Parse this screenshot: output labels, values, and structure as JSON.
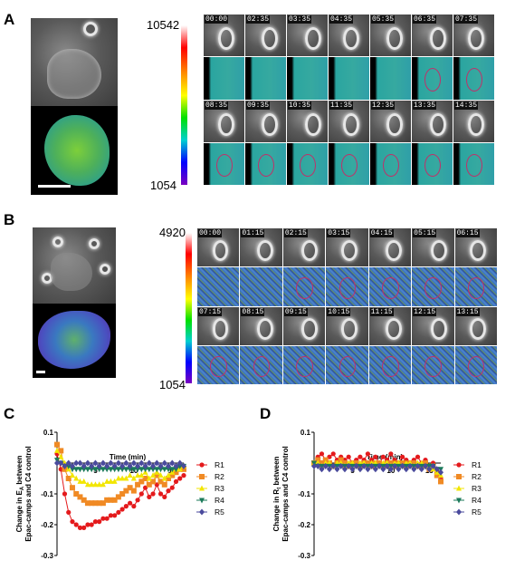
{
  "panels": {
    "A": {
      "label": "A",
      "cb_max": "10542",
      "cb_min": "1054",
      "times_row1": [
        "00:00",
        "02:35",
        "03:35",
        "04:35",
        "05:35",
        "06:35",
        "07:35"
      ],
      "times_row2": [
        "08:35",
        "09:35",
        "10:35",
        "11:35",
        "12:35",
        "13:35",
        "14:35"
      ]
    },
    "B": {
      "label": "B",
      "cb_max": "4920",
      "cb_min": "1054",
      "times_row1": [
        "00:00",
        "01:15",
        "02:15",
        "03:15",
        "04:15",
        "05:15",
        "06:15"
      ],
      "times_row2": [
        "07:15",
        "08:15",
        "09:15",
        "10:15",
        "11:15",
        "12:15",
        "13:15"
      ]
    },
    "C": {
      "label": "C"
    },
    "D": {
      "label": "D"
    }
  },
  "chart_data": [
    {
      "type": "line",
      "panel": "C",
      "title": "",
      "xlabel": "Time (min)",
      "ylabel_line1": "Change in E",
      "ylabel_sub": "A",
      "ylabel_rest": " between",
      "ylabel_line2": "Epac-camps and C4 control",
      "xlim": [
        0,
        16.5
      ],
      "ylim": [
        -0.3,
        0.1
      ],
      "xticks": [
        5,
        10,
        15
      ],
      "yticks": [
        0.1,
        -0.1,
        -0.2,
        -0.3
      ],
      "ytick_labels": [
        "0.1",
        "-0.1",
        "-0.2",
        "-0.3"
      ],
      "x": [
        0,
        0.5,
        1,
        1.5,
        2,
        2.5,
        3,
        3.5,
        4,
        4.5,
        5,
        5.5,
        6,
        6.5,
        7,
        7.5,
        8,
        8.5,
        9,
        9.5,
        10,
        10.5,
        11,
        11.5,
        12,
        12.5,
        13,
        13.5,
        14,
        14.5,
        15,
        15.5,
        16,
        16.5
      ],
      "series": [
        {
          "name": "R1",
          "color": "#e41a1c",
          "marker": "circle",
          "values": [
            0.03,
            -0.02,
            -0.1,
            -0.16,
            -0.19,
            -0.2,
            -0.21,
            -0.21,
            -0.2,
            -0.2,
            -0.19,
            -0.19,
            -0.18,
            -0.18,
            -0.17,
            -0.17,
            -0.16,
            -0.15,
            -0.14,
            -0.13,
            -0.14,
            -0.12,
            -0.1,
            -0.08,
            -0.11,
            -0.1,
            -0.07,
            -0.1,
            -0.11,
            -0.09,
            -0.08,
            -0.06,
            -0.05,
            -0.04
          ]
        },
        {
          "name": "R2",
          "color": "#f08a24",
          "marker": "square",
          "values": [
            0.06,
            0.04,
            -0.02,
            -0.05,
            -0.08,
            -0.1,
            -0.11,
            -0.12,
            -0.13,
            -0.13,
            -0.13,
            -0.13,
            -0.13,
            -0.12,
            -0.12,
            -0.12,
            -0.11,
            -0.1,
            -0.09,
            -0.08,
            -0.09,
            -0.07,
            -0.06,
            -0.05,
            -0.07,
            -0.06,
            -0.04,
            -0.06,
            -0.07,
            -0.05,
            -0.04,
            -0.03,
            -0.02,
            -0.02
          ]
        },
        {
          "name": "R3",
          "color": "#f2e600",
          "marker": "triangle-up",
          "values": [
            0.04,
            0.02,
            0.0,
            -0.02,
            -0.04,
            -0.05,
            -0.06,
            -0.06,
            -0.07,
            -0.07,
            -0.07,
            -0.07,
            -0.07,
            -0.06,
            -0.06,
            -0.06,
            -0.05,
            -0.05,
            -0.05,
            -0.04,
            -0.05,
            -0.04,
            -0.04,
            -0.03,
            -0.05,
            -0.04,
            -0.03,
            -0.04,
            -0.05,
            -0.04,
            -0.03,
            -0.02,
            -0.02,
            -0.01
          ]
        },
        {
          "name": "R4",
          "color": "#1b7a5a",
          "marker": "triangle-down",
          "values": [
            0.01,
            0.0,
            -0.01,
            -0.01,
            -0.02,
            -0.02,
            -0.02,
            -0.02,
            -0.02,
            -0.02,
            -0.02,
            -0.02,
            -0.02,
            -0.02,
            -0.02,
            -0.02,
            -0.02,
            -0.02,
            -0.02,
            -0.02,
            -0.02,
            -0.02,
            -0.02,
            -0.02,
            -0.02,
            -0.02,
            -0.02,
            -0.02,
            -0.02,
            -0.02,
            -0.02,
            -0.02,
            -0.01,
            -0.01
          ]
        },
        {
          "name": "R5",
          "color": "#4a4a9c",
          "marker": "diamond",
          "values": [
            0.0,
            0.0,
            -0.01,
            0.0,
            -0.01,
            0.0,
            0.0,
            -0.01,
            0.0,
            -0.01,
            0.0,
            -0.01,
            0.0,
            -0.01,
            0.0,
            -0.01,
            0.0,
            -0.01,
            0.0,
            -0.01,
            0.0,
            -0.01,
            0.0,
            -0.01,
            0.0,
            -0.01,
            0.0,
            -0.01,
            0.0,
            -0.01,
            0.0,
            -0.01,
            0.0,
            -0.01
          ]
        }
      ]
    },
    {
      "type": "line",
      "panel": "D",
      "title": "",
      "xlabel": "Time (min)",
      "ylabel_line1": "Change in R",
      "ylabel_sub": "t",
      "ylabel_rest": " between",
      "ylabel_line2": "Epac-camps and C4 control",
      "xlim": [
        0,
        16.5
      ],
      "ylim": [
        -0.3,
        0.1
      ],
      "xticks": [
        5,
        10,
        15
      ],
      "yticks": [
        0.1,
        -0.1,
        -0.2,
        -0.3
      ],
      "ytick_labels": [
        "0.1",
        "-0.1",
        "-0.2",
        "-0.3"
      ],
      "x": [
        0,
        0.5,
        1,
        1.5,
        2,
        2.5,
        3,
        3.5,
        4,
        4.5,
        5,
        5.5,
        6,
        6.5,
        7,
        7.5,
        8,
        8.5,
        9,
        9.5,
        10,
        10.5,
        11,
        11.5,
        12,
        12.5,
        13,
        13.5,
        14,
        14.5,
        15,
        15.5,
        16,
        16.5
      ],
      "series": [
        {
          "name": "R1",
          "color": "#e41a1c",
          "marker": "circle",
          "values": [
            0.0,
            0.02,
            0.03,
            0.01,
            0.02,
            0.03,
            0.01,
            0.02,
            0.01,
            0.02,
            0.0,
            0.01,
            0.02,
            0.01,
            0.03,
            0.01,
            0.02,
            0.0,
            0.02,
            0.01,
            0.03,
            0.01,
            0.0,
            0.02,
            0.01,
            0.0,
            0.01,
            0.02,
            0.0,
            0.01,
            -0.01,
            0.0,
            -0.03,
            -0.05
          ]
        },
        {
          "name": "R2",
          "color": "#f08a24",
          "marker": "square",
          "values": [
            0.0,
            0.01,
            0.0,
            0.01,
            0.0,
            -0.01,
            0.0,
            0.01,
            0.0,
            -0.01,
            0.0,
            0.0,
            -0.01,
            0.0,
            0.0,
            -0.01,
            0.0,
            0.0,
            -0.01,
            0.0,
            0.0,
            -0.01,
            0.0,
            0.0,
            -0.01,
            0.0,
            0.0,
            -0.01,
            -0.01,
            0.0,
            -0.02,
            -0.01,
            -0.04,
            -0.06
          ]
        },
        {
          "name": "R3",
          "color": "#f2e600",
          "marker": "triangle-up",
          "values": [
            0.0,
            0.0,
            -0.01,
            0.0,
            0.0,
            -0.01,
            0.0,
            0.0,
            -0.01,
            0.0,
            0.0,
            -0.01,
            0.0,
            0.0,
            -0.01,
            0.0,
            0.0,
            -0.01,
            0.0,
            0.0,
            -0.01,
            0.0,
            0.0,
            -0.01,
            0.0,
            0.0,
            -0.01,
            0.0,
            0.0,
            -0.01,
            -0.01,
            -0.02,
            -0.03,
            -0.04
          ]
        },
        {
          "name": "R4",
          "color": "#1b7a5a",
          "marker": "triangle-down",
          "values": [
            0.0,
            -0.01,
            -0.01,
            -0.01,
            -0.01,
            -0.01,
            -0.01,
            -0.01,
            -0.01,
            -0.01,
            -0.01,
            -0.01,
            -0.01,
            -0.01,
            -0.01,
            -0.01,
            -0.01,
            -0.01,
            -0.01,
            -0.01,
            -0.01,
            -0.01,
            -0.01,
            -0.01,
            -0.01,
            -0.01,
            -0.01,
            -0.01,
            -0.01,
            -0.01,
            -0.01,
            -0.01,
            -0.02,
            -0.02
          ]
        },
        {
          "name": "R5",
          "color": "#4a4a9c",
          "marker": "diamond",
          "values": [
            -0.01,
            -0.01,
            -0.02,
            -0.01,
            -0.02,
            -0.01,
            -0.02,
            -0.01,
            -0.02,
            -0.01,
            -0.02,
            -0.01,
            -0.02,
            -0.01,
            -0.02,
            -0.01,
            -0.02,
            -0.01,
            -0.02,
            -0.01,
            -0.02,
            -0.01,
            -0.02,
            -0.01,
            -0.02,
            -0.01,
            -0.02,
            -0.01,
            -0.02,
            -0.01,
            -0.02,
            -0.01,
            -0.02,
            -0.03
          ]
        }
      ]
    }
  ]
}
